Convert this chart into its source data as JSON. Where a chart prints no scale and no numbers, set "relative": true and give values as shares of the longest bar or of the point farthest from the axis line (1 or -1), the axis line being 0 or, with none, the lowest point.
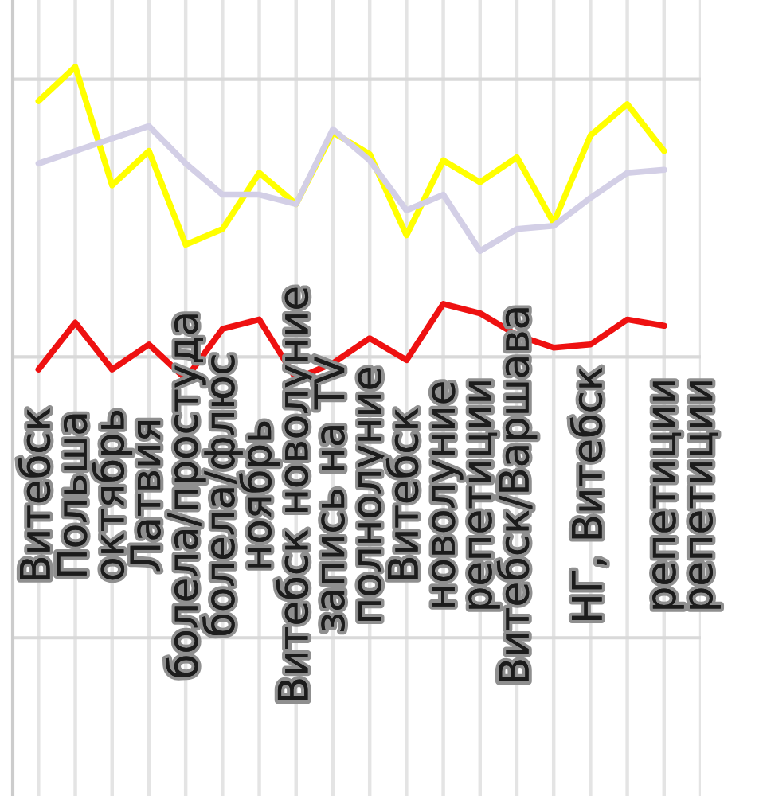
{
  "chart_data": {
    "type": "line",
    "relative": true,
    "categories": [
      "Витебск",
      "Польша",
      "октябрь",
      "Латвия",
      "болела/простуда",
      "болела/флюс",
      "ноябрь",
      "Витебск новолуние",
      "запись на TV",
      "полнолуние",
      "Витебск",
      "новолуние",
      "репетиции",
      "Витебск/Варшава",
      null,
      "НГ, Витебск",
      null,
      "репетиции",
      "репетиции"
    ],
    "series": [
      {
        "color": "#ffff00",
        "values": [
          0.89,
          1.0,
          0.62,
          0.73,
          0.43,
          0.48,
          0.66,
          0.56,
          0.79,
          0.72,
          0.46,
          0.7,
          0.63,
          0.71,
          0.5,
          0.78,
          0.88,
          0.73,
          null
        ]
      },
      {
        "color": "#d3cfe6",
        "values": [
          0.69,
          0.73,
          0.77,
          0.81,
          0.69,
          0.59,
          0.59,
          0.56,
          0.8,
          0.7,
          0.54,
          0.59,
          0.41,
          0.48,
          0.49,
          0.58,
          0.66,
          0.67,
          null
        ]
      },
      {
        "color": "#ee1111",
        "values": [
          0.03,
          0.18,
          0.03,
          0.11,
          0,
          0.16,
          0.19,
          0,
          0.05,
          0.13,
          0.06,
          0.24,
          0.21,
          0.14,
          0.1,
          0.11,
          0.19,
          0.17,
          null
        ]
      }
    ],
    "grid": "x",
    "ref_lines": [
      {
        "axis": "y",
        "value": 0.96,
        "color": "#d9d9d9"
      },
      {
        "axis": "y",
        "value": 0.07,
        "color": "#d9d9d9"
      },
      {
        "axis": "y",
        "value": -0.83,
        "color": "#d9d9d9"
      }
    ]
  }
}
